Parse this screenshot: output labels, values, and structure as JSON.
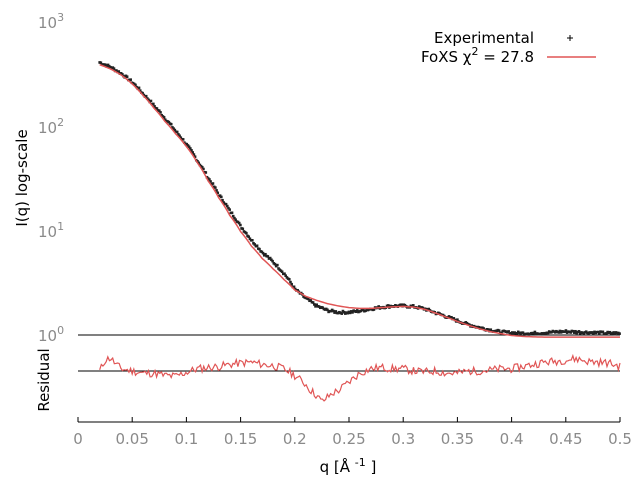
{
  "chart_data": {
    "type": "scatter",
    "xlabel": "q [Å ",
    "xlabel_sup": "-1",
    "xlabel_end": " ]",
    "ylabel": "I(q) log-scale",
    "residual_label": "Residual",
    "yscale": "log",
    "xlim": [
      0,
      0.5
    ],
    "ylim": [
      1,
      1000
    ],
    "x_ticks": [
      "0",
      "0.05",
      "0.1",
      "0.15",
      "0.2",
      "0.25",
      "0.3",
      "0.35",
      "0.4",
      "0.45",
      "0.5"
    ],
    "y_ticks": [
      {
        "base": "10",
        "exp": "0"
      },
      {
        "base": "10",
        "exp": "1"
      },
      {
        "base": "10",
        "exp": "2"
      },
      {
        "base": "10",
        "exp": "3"
      }
    ],
    "legend": {
      "placement": "top-right",
      "experimental_label": "Experimental",
      "fit_label_pre": "FoXS χ",
      "fit_label_sup": "2",
      "fit_label_post": " = 27.8"
    },
    "series": [
      {
        "name": "Experimental",
        "color": "#222222",
        "marker": "dots",
        "x": [
          0.02,
          0.03,
          0.04,
          0.05,
          0.06,
          0.07,
          0.08,
          0.09,
          0.1,
          0.11,
          0.12,
          0.13,
          0.14,
          0.15,
          0.16,
          0.17,
          0.18,
          0.19,
          0.2,
          0.21,
          0.22,
          0.23,
          0.24,
          0.25,
          0.26,
          0.27,
          0.28,
          0.29,
          0.3,
          0.31,
          0.32,
          0.33,
          0.34,
          0.35,
          0.36,
          0.37,
          0.38,
          0.39,
          0.4,
          0.41,
          0.42,
          0.43,
          0.44,
          0.45,
          0.46,
          0.47,
          0.48,
          0.49,
          0.5
        ],
        "y": [
          410,
          370,
          320,
          265,
          205,
          158,
          120,
          90,
          67,
          47,
          32,
          22,
          15.5,
          11,
          8.1,
          6.2,
          5.0,
          3.9,
          2.75,
          2.25,
          1.9,
          1.72,
          1.65,
          1.65,
          1.7,
          1.78,
          1.85,
          1.9,
          1.9,
          1.87,
          1.78,
          1.63,
          1.5,
          1.37,
          1.26,
          1.18,
          1.12,
          1.07,
          1.05,
          1.04,
          1.04,
          1.05,
          1.07,
          1.08,
          1.07,
          1.06,
          1.05,
          1.04,
          1.04
        ]
      },
      {
        "name": "FoXS χ2 = 27.8",
        "color": "#e05555",
        "marker": "line",
        "x": [
          0.02,
          0.03,
          0.04,
          0.05,
          0.06,
          0.07,
          0.08,
          0.09,
          0.1,
          0.11,
          0.12,
          0.13,
          0.14,
          0.15,
          0.16,
          0.17,
          0.18,
          0.19,
          0.2,
          0.21,
          0.22,
          0.23,
          0.24,
          0.25,
          0.26,
          0.27,
          0.28,
          0.29,
          0.3,
          0.31,
          0.32,
          0.33,
          0.34,
          0.35,
          0.36,
          0.37,
          0.38,
          0.39,
          0.4,
          0.41,
          0.42,
          0.43,
          0.44,
          0.45,
          0.46,
          0.47,
          0.48,
          0.49,
          0.5
        ],
        "y": [
          390,
          355,
          310,
          255,
          198,
          150,
          112,
          85,
          64,
          45,
          30,
          20.5,
          14,
          9.8,
          7.1,
          5.4,
          4.3,
          3.4,
          2.7,
          2.35,
          2.15,
          2.0,
          1.9,
          1.83,
          1.8,
          1.8,
          1.83,
          1.86,
          1.88,
          1.85,
          1.76,
          1.62,
          1.48,
          1.35,
          1.24,
          1.15,
          1.08,
          1.03,
          0.99,
          0.97,
          0.96,
          0.955,
          0.955,
          0.955,
          0.955,
          0.955,
          0.955,
          0.955,
          0.955
        ]
      }
    ],
    "residual": {
      "color": "#e05555",
      "zero_line_color": "#000000",
      "x": [
        0.02,
        0.025,
        0.03,
        0.035,
        0.04,
        0.05,
        0.06,
        0.07,
        0.08,
        0.09,
        0.1,
        0.11,
        0.12,
        0.13,
        0.14,
        0.15,
        0.16,
        0.17,
        0.18,
        0.19,
        0.2,
        0.205,
        0.21,
        0.215,
        0.22,
        0.225,
        0.23,
        0.235,
        0.24,
        0.245,
        0.25,
        0.26,
        0.27,
        0.28,
        0.29,
        0.3,
        0.31,
        0.32,
        0.33,
        0.34,
        0.35,
        0.36,
        0.37,
        0.38,
        0.39,
        0.4,
        0.41,
        0.42,
        0.43,
        0.44,
        0.45,
        0.46,
        0.47,
        0.48,
        0.49,
        0.5
      ],
      "y": [
        0.0,
        0.25,
        0.3,
        0.15,
        0.05,
        0.0,
        -0.05,
        -0.05,
        -0.1,
        -0.12,
        -0.03,
        0.05,
        0.08,
        0.1,
        0.15,
        0.18,
        0.2,
        0.15,
        0.12,
        0.05,
        -0.1,
        -0.2,
        -0.3,
        -0.45,
        -0.55,
        -0.7,
        -0.6,
        -0.5,
        -0.45,
        -0.35,
        -0.25,
        -0.05,
        0.05,
        0.08,
        0.05,
        0.05,
        0.0,
        -0.02,
        0.0,
        -0.05,
        -0.05,
        0.0,
        0.0,
        0.02,
        0.05,
        0.05,
        0.1,
        0.15,
        0.2,
        0.22,
        0.25,
        0.28,
        0.22,
        0.2,
        0.18,
        0.1
      ]
    }
  }
}
